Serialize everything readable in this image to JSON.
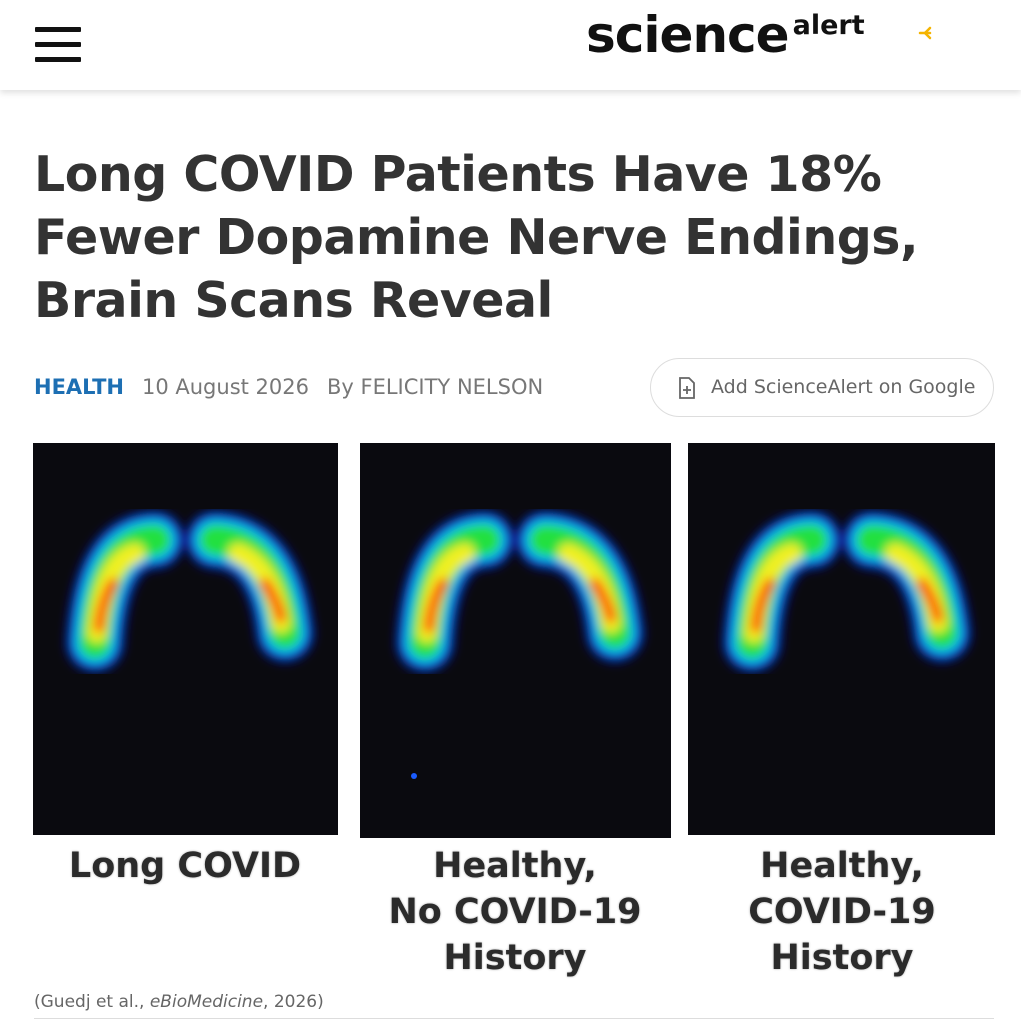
{
  "header": {
    "logo": "science",
    "logo_suffix": "alert"
  },
  "article": {
    "title": "Long COVID Patients Have 18% Fewer Dopamine Nerve Endings, Brain Scans Reveal",
    "category": "HEALTH",
    "date": "10 August 2026",
    "byline": "By FELICITY NELSON",
    "google_button": "Add ScienceAlert on Google",
    "figure": {
      "panels": [
        {
          "caption_lines": [
            "Long COVID"
          ]
        },
        {
          "caption_lines": [
            "Healthy,",
            "No COVID-19",
            "History"
          ]
        },
        {
          "caption_lines": [
            "Healthy,",
            "COVID-19",
            "History"
          ]
        }
      ],
      "credit": {
        "before": "(Guedj et al., ",
        "journal": "eBioMedicine",
        "after": ", 2026)"
      }
    }
  }
}
